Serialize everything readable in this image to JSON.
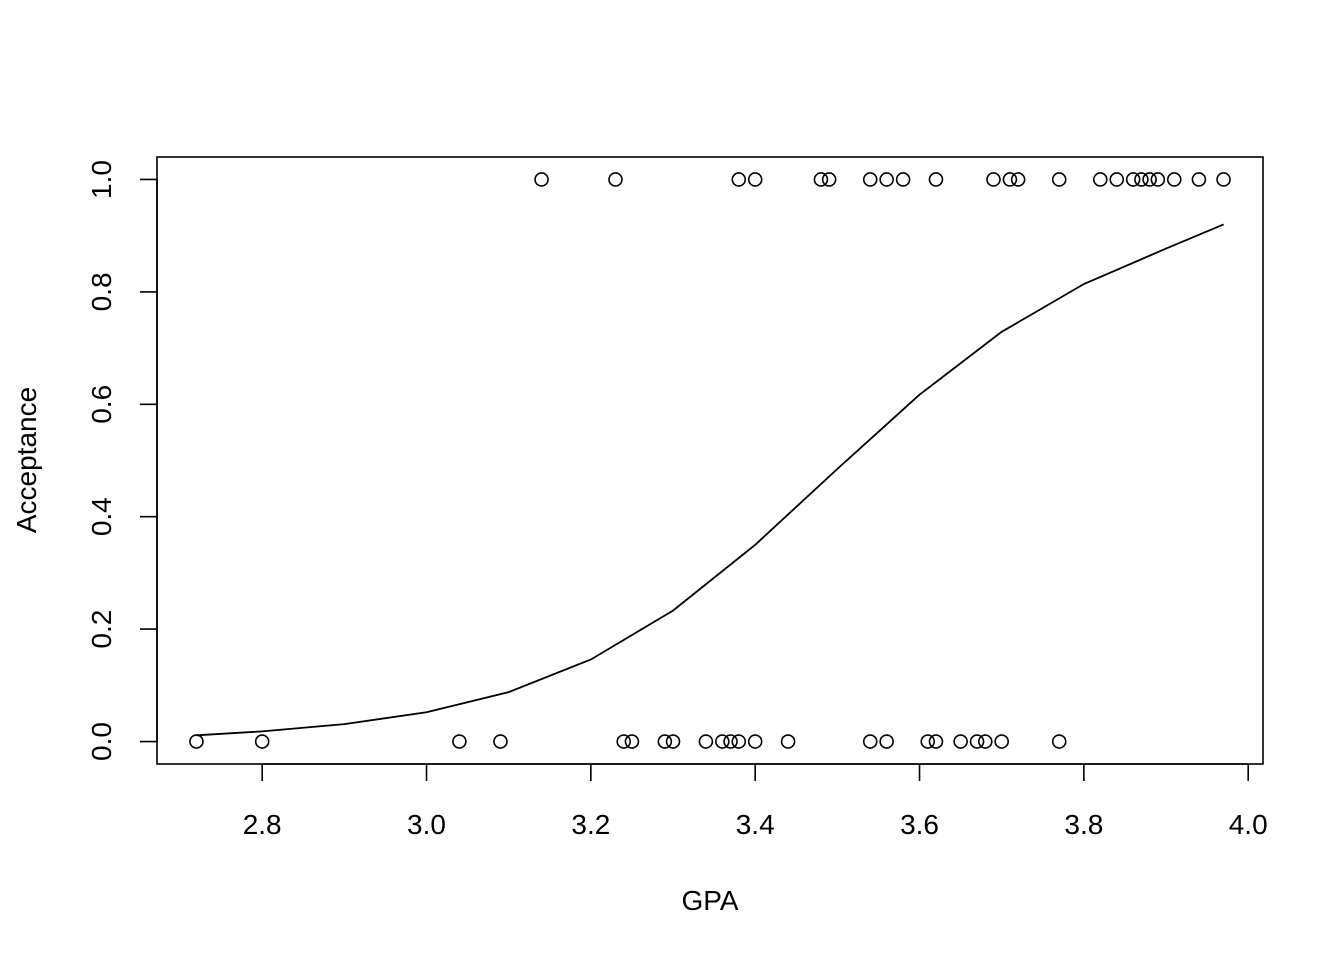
{
  "chart_data": {
    "type": "scatter",
    "title": "",
    "xlabel": "GPA",
    "ylabel": "Acceptance",
    "xlim": [
      2.672,
      4.018
    ],
    "ylim": [
      -0.04,
      1.04
    ],
    "x_ticks": [
      2.8,
      3.0,
      3.2,
      3.4,
      3.6,
      3.8,
      4.0
    ],
    "x_tick_labels": [
      "2.8",
      "3.0",
      "3.2",
      "3.4",
      "3.6",
      "3.8",
      "4.0"
    ],
    "y_ticks": [
      0.0,
      0.2,
      0.4,
      0.6,
      0.8,
      1.0
    ],
    "y_tick_labels": [
      "0.0",
      "0.2",
      "0.4",
      "0.6",
      "0.8",
      "1.0"
    ],
    "grid": false,
    "legend": "none",
    "points": {
      "accepted_gpa": [
        3.14,
        3.23,
        3.38,
        3.4,
        3.48,
        3.49,
        3.54,
        3.56,
        3.58,
        3.62,
        3.69,
        3.71,
        3.72,
        3.77,
        3.82,
        3.84,
        3.86,
        3.87,
        3.88,
        3.89,
        3.91,
        3.94,
        3.97
      ],
      "rejected_gpa": [
        2.72,
        2.8,
        3.04,
        3.09,
        3.24,
        3.25,
        3.29,
        3.3,
        3.34,
        3.36,
        3.37,
        3.38,
        3.4,
        3.44,
        3.54,
        3.56,
        3.61,
        3.62,
        3.65,
        3.67,
        3.68,
        3.7,
        3.77
      ]
    },
    "fit_curve": {
      "x": [
        2.72,
        2.8,
        2.9,
        3.0,
        3.1,
        3.2,
        3.3,
        3.4,
        3.5,
        3.6,
        3.7,
        3.8,
        3.9,
        3.97
      ],
      "y": [
        0.011,
        0.018,
        0.031,
        0.052,
        0.088,
        0.146,
        0.233,
        0.35,
        0.485,
        0.617,
        0.729,
        0.814,
        0.877,
        0.92
      ]
    }
  }
}
